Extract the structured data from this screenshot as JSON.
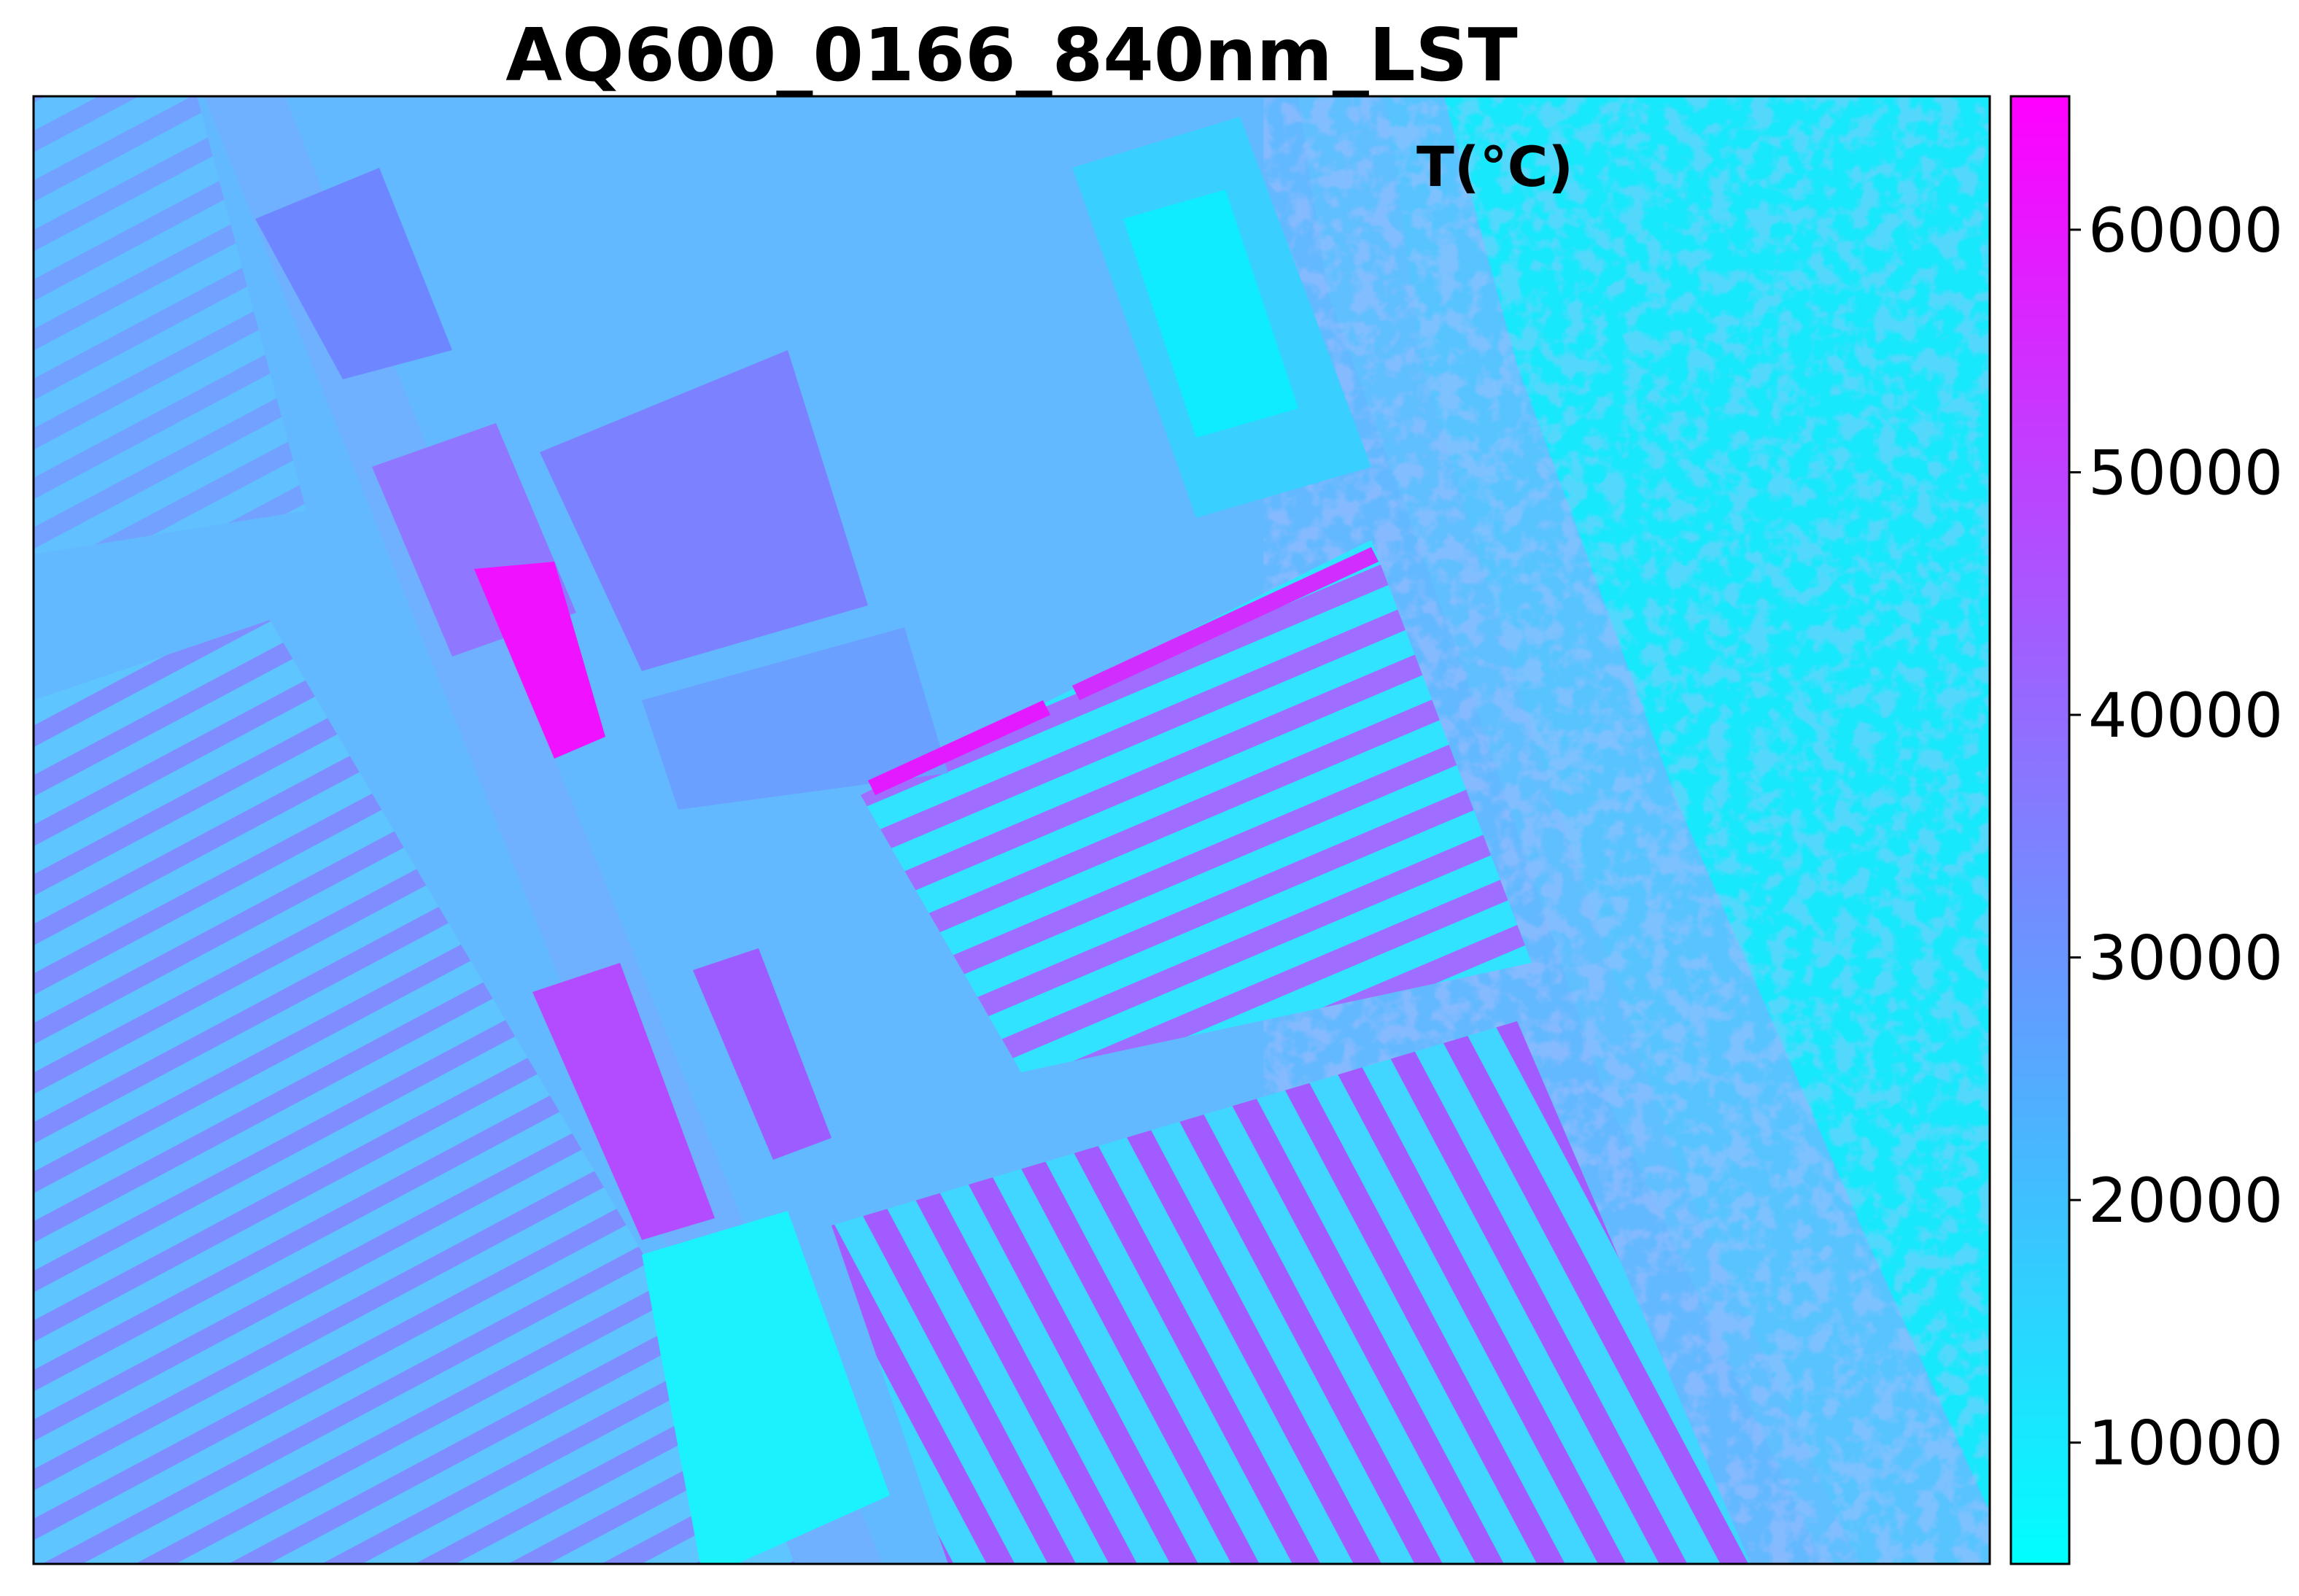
{
  "chart_data": {
    "type": "heatmap",
    "title": "AQ600_0166_840nm_LST",
    "colorbar": {
      "label": "T(°C)",
      "colormap": "cool",
      "range": [
        5000,
        65500
      ],
      "ticks": [
        10000,
        20000,
        30000,
        40000,
        50000,
        60000
      ],
      "tick_labels": [
        "10000",
        "20000",
        "30000",
        "40000",
        "50000",
        "60000"
      ],
      "colors": {
        "low": "#00ffff",
        "high": "#ff00ff"
      }
    },
    "axes": {
      "x_ticks_visible": false,
      "y_ticks_visible": false,
      "grid": false
    },
    "field_rows": {
      "upper_field_rows": [
        42000,
        38000,
        41000,
        39000,
        42000,
        40000,
        38000
      ],
      "lower_right_rows": [
        22000,
        38000,
        21000,
        40000,
        20000,
        39000,
        18000,
        37000
      ]
    },
    "hotspot_value": 62000,
    "open_field_value": 10000
  }
}
